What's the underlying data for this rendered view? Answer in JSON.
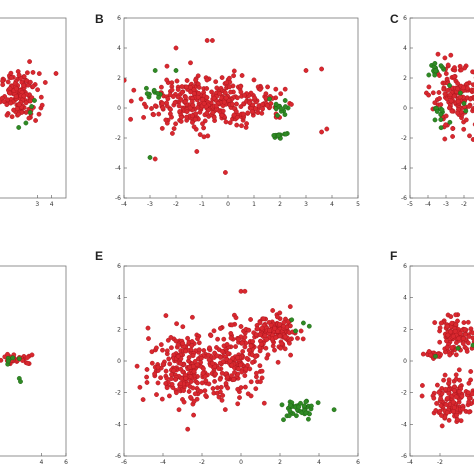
{
  "colors": {
    "red": "#d9282f",
    "red_stroke": "#a5141c",
    "green": "#2f8a24",
    "green_stroke": "#1d5e15"
  },
  "chart_data": [
    {
      "type": "scatter",
      "panel_label": "",
      "xlabel": "",
      "ylabel": "",
      "xlim": [
        -1,
        5
      ],
      "ylim": [
        -6,
        6
      ],
      "x_ticks": [
        "3",
        "4"
      ],
      "y_ticks": [],
      "series": [
        {
          "color": "red",
          "clusters": [
            {
              "cx": 1.8,
              "cy": 0.8,
              "rx": 1.2,
              "ry": 1.4,
              "n": 140
            }
          ],
          "points": [
            [
              4.3,
              2.3
            ]
          ]
        },
        {
          "color": "green",
          "clusters": [],
          "points": [
            [
              2.6,
              0.1
            ],
            [
              2.5,
              -0.3
            ],
            [
              1.7,
              -1.3
            ],
            [
              2.8,
              0.5
            ],
            [
              2.2,
              -1.0
            ]
          ]
        }
      ]
    },
    {
      "type": "scatter",
      "panel_label": "B",
      "xlabel": "",
      "ylabel": "",
      "xlim": [
        -4,
        5
      ],
      "ylim": [
        -6,
        6
      ],
      "x_ticks": [
        "-4",
        "-3",
        "-2",
        "-1",
        "0",
        "1",
        "2",
        "3",
        "4",
        "5"
      ],
      "y_ticks": [
        "6",
        "4",
        "2",
        "0",
        "-2",
        "-4",
        "-6"
      ],
      "series": [
        {
          "color": "red",
          "clusters": [
            {
              "cx": -1.0,
              "cy": 0.4,
              "rx": 2.0,
              "ry": 1.6,
              "n": 320
            },
            {
              "cx": 1.0,
              "cy": 0.2,
              "rx": 1.0,
              "ry": 1.0,
              "n": 60
            }
          ],
          "points": [
            [
              -2.0,
              4.0
            ],
            [
              -0.8,
              4.5
            ],
            [
              -0.6,
              4.5
            ],
            [
              3.0,
              2.5
            ],
            [
              3.6,
              2.6
            ],
            [
              3.8,
              -1.4
            ],
            [
              3.6,
              -1.6
            ],
            [
              -0.1,
              -4.3
            ],
            [
              -2.8,
              -3.4
            ],
            [
              -1.2,
              -2.9
            ]
          ]
        },
        {
          "color": "green",
          "clusters": [
            {
              "cx": 2.0,
              "cy": -1.8,
              "rx": 0.3,
              "ry": 0.3,
              "n": 14
            },
            {
              "cx": 2.1,
              "cy": 0.0,
              "rx": 0.3,
              "ry": 0.3,
              "n": 12
            },
            {
              "cx": -2.9,
              "cy": 1.0,
              "rx": 0.3,
              "ry": 0.3,
              "n": 10
            }
          ],
          "points": [
            [
              -2.8,
              2.5
            ],
            [
              -2.0,
              2.5
            ],
            [
              -3.0,
              -3.3
            ],
            [
              1.6,
              0.6
            ],
            [
              2.2,
              0.5
            ]
          ]
        }
      ]
    },
    {
      "type": "scatter",
      "panel_label": "C",
      "xlabel": "",
      "ylabel": "",
      "xlim": [
        -5,
        0
      ],
      "ylim": [
        -6,
        6
      ],
      "x_ticks": [
        "-5",
        "-4",
        "-3",
        "-2"
      ],
      "y_ticks": [
        "6",
        "4",
        "2",
        "0",
        "-2",
        "-4",
        "-6"
      ],
      "series": [
        {
          "color": "red",
          "clusters": [
            {
              "cx": -2.3,
              "cy": 0.6,
              "rx": 1.4,
              "ry": 1.9,
              "n": 180
            }
          ],
          "points": []
        },
        {
          "color": "green",
          "clusters": [
            {
              "cx": -3.6,
              "cy": 2.6,
              "rx": 0.4,
              "ry": 0.3,
              "n": 14
            },
            {
              "cx": -3.2,
              "cy": -0.4,
              "rx": 0.4,
              "ry": 0.5,
              "n": 12
            }
          ],
          "points": [
            [
              -2.2,
              1.0
            ],
            [
              -1.9,
              -0.2
            ],
            [
              -2.8,
              1.5
            ],
            [
              -2.0,
              0.3
            ]
          ]
        }
      ]
    },
    {
      "type": "scatter",
      "panel_label": "",
      "xlabel": "",
      "ylabel": "",
      "xlim": [
        -1,
        6
      ],
      "ylim": [
        -6,
        6
      ],
      "x_ticks": [
        "4",
        "6"
      ],
      "y_ticks": [],
      "series": [
        {
          "color": "red",
          "clusters": [
            {
              "cx": 2.0,
              "cy": 0.1,
              "rx": 1.4,
              "ry": 0.3,
              "n": 30
            }
          ],
          "points": []
        },
        {
          "color": "green",
          "clusters": [
            {
              "cx": 1.5,
              "cy": 0.1,
              "rx": 0.6,
              "ry": 0.3,
              "n": 6
            }
          ],
          "points": [
            [
              2.2,
              -1.1
            ],
            [
              2.3,
              -1.3
            ]
          ]
        }
      ]
    },
    {
      "type": "scatter",
      "panel_label": "E",
      "xlabel": "",
      "ylabel": "",
      "xlim": [
        -6,
        6
      ],
      "ylim": [
        -6,
        6
      ],
      "x_ticks": [
        "-6",
        "-4",
        "-2",
        "0",
        "2",
        "4",
        "6"
      ],
      "y_ticks": [
        "6",
        "4",
        "2",
        "0",
        "-2",
        "-4",
        "-6"
      ],
      "series": [
        {
          "color": "red",
          "clusters": [
            {
              "cx": -2.8,
              "cy": -0.4,
              "rx": 1.7,
              "ry": 2.1,
              "n": 250
            },
            {
              "cx": -0.2,
              "cy": 0.0,
              "rx": 1.4,
              "ry": 2.0,
              "n": 200
            },
            {
              "cx": 1.8,
              "cy": 1.8,
              "rx": 1.1,
              "ry": 0.9,
              "n": 130
            }
          ],
          "points": [
            [
              0.0,
              4.4
            ],
            [
              0.2,
              4.4
            ]
          ]
        },
        {
          "color": "green",
          "clusters": [
            {
              "cx": 3.0,
              "cy": -3.1,
              "rx": 0.9,
              "ry": 0.6,
              "n": 45
            }
          ],
          "points": [
            [
              2.6,
              2.6
            ],
            [
              3.2,
              2.4
            ],
            [
              3.5,
              2.2
            ],
            [
              2.8,
              1.9
            ]
          ]
        }
      ]
    },
    {
      "type": "scatter",
      "panel_label": "F",
      "xlabel": "",
      "ylabel": "",
      "xlim": [
        -4,
        2
      ],
      "ylim": [
        -6,
        6
      ],
      "x_ticks": [
        "-4",
        "-2"
      ],
      "y_ticks": [
        "6",
        "4",
        "2",
        "0",
        "-2",
        "-4",
        "-6"
      ],
      "series": [
        {
          "color": "red",
          "clusters": [
            {
              "cx": -1.0,
              "cy": 1.6,
              "rx": 1.1,
              "ry": 1.0,
              "n": 110
            },
            {
              "cx": -1.0,
              "cy": -2.4,
              "rx": 1.3,
              "ry": 1.3,
              "n": 140
            },
            {
              "cx": -2.3,
              "cy": 0.4,
              "rx": 0.7,
              "ry": 0.15,
              "n": 25
            }
          ],
          "points": []
        },
        {
          "color": "green",
          "clusters": [],
          "points": [
            [
              -2.3,
              0.3
            ],
            [
              -0.8,
              0.8
            ],
            [
              0.2,
              1.0
            ]
          ]
        }
      ]
    }
  ]
}
